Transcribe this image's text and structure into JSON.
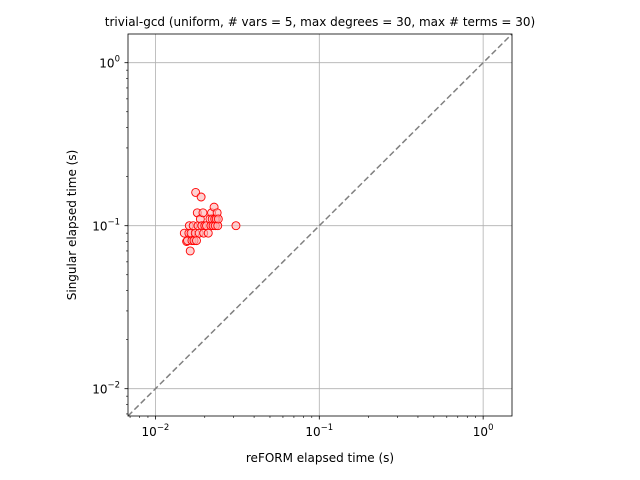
{
  "chart_data": {
    "type": "scatter",
    "title": "trivial-gcd (uniform, # vars = 5, max degrees = 30, max # terms = 30)",
    "xlabel": "reFORM elapsed time (s)",
    "ylabel": "Singular elapsed time (s)",
    "xscale": "log",
    "yscale": "log",
    "xlim": [
      0.0068,
      1.5
    ],
    "ylim": [
      0.0068,
      1.5
    ],
    "grid": true,
    "reference_line": {
      "style": "dashed",
      "color": "#808080",
      "from": [
        0.0068,
        0.0068
      ],
      "to": [
        1.5,
        1.5
      ]
    },
    "xticks": [
      {
        "value": 0.01,
        "base": "10",
        "exp": "−2"
      },
      {
        "value": 0.1,
        "base": "10",
        "exp": "−1"
      },
      {
        "value": 1,
        "base": "10",
        "exp": "0"
      }
    ],
    "yticks": [
      {
        "value": 0.01,
        "base": "10",
        "exp": "−2"
      },
      {
        "value": 0.1,
        "base": "10",
        "exp": "−1"
      },
      {
        "value": 1,
        "base": "10",
        "exp": "0"
      }
    ],
    "marker": {
      "shape": "circle",
      "face_color": "#ffb3b3",
      "edge_color": "#ff0000",
      "face_opacity": 0.6
    },
    "points": [
      [
        0.015,
        0.09
      ],
      [
        0.0155,
        0.08
      ],
      [
        0.0157,
        0.081
      ],
      [
        0.016,
        0.09
      ],
      [
        0.0161,
        0.1
      ],
      [
        0.0163,
        0.07
      ],
      [
        0.0165,
        0.09
      ],
      [
        0.0167,
        0.081
      ],
      [
        0.017,
        0.1
      ],
      [
        0.0172,
        0.081
      ],
      [
        0.0175,
        0.09
      ],
      [
        0.0176,
        0.16
      ],
      [
        0.0178,
        0.081
      ],
      [
        0.018,
        0.12
      ],
      [
        0.0182,
        0.1
      ],
      [
        0.0185,
        0.09
      ],
      [
        0.0188,
        0.11
      ],
      [
        0.019,
        0.15
      ],
      [
        0.0192,
        0.1
      ],
      [
        0.0195,
        0.12
      ],
      [
        0.0197,
        0.09
      ],
      [
        0.02,
        0.1
      ],
      [
        0.0205,
        0.1
      ],
      [
        0.021,
        0.09
      ],
      [
        0.0215,
        0.11
      ],
      [
        0.0218,
        0.1
      ],
      [
        0.022,
        0.12
      ],
      [
        0.0222,
        0.11
      ],
      [
        0.0225,
        0.1
      ],
      [
        0.0228,
        0.13
      ],
      [
        0.023,
        0.11
      ],
      [
        0.0232,
        0.1
      ],
      [
        0.0235,
        0.11
      ],
      [
        0.0238,
        0.12
      ],
      [
        0.024,
        0.1
      ],
      [
        0.0242,
        0.11
      ],
      [
        0.031,
        0.1
      ]
    ]
  }
}
